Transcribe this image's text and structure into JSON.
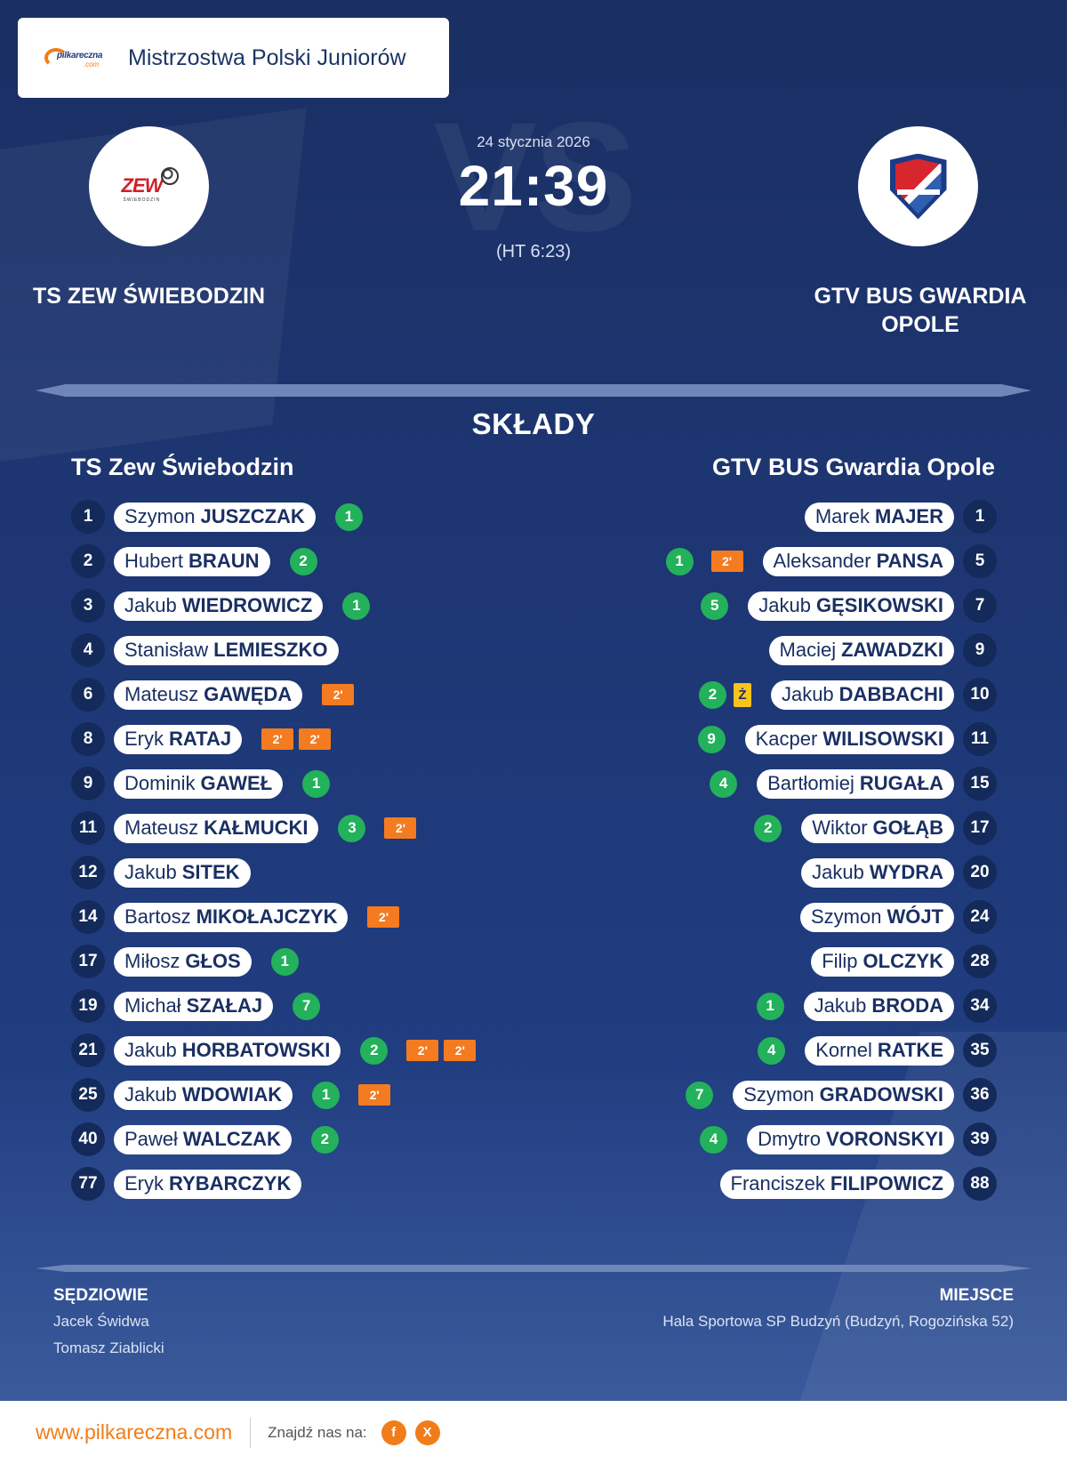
{
  "league": {
    "title": "Mistrzostwa Polski Juniorów",
    "logo_text": "pilkareczna",
    "logo_sub": ".com"
  },
  "watermark": "VS",
  "match": {
    "date": "24 stycznia 2026",
    "score": "21:39",
    "halftime": "(HT 6:23)"
  },
  "home": {
    "name": "TS ZEW ŚWIEBODZIN",
    "roster_title": "TS Zew Świebodzin",
    "logo_text": "ZEW",
    "logo_sub": "ŚWIEBODZIN",
    "players": [
      {
        "num": "1",
        "first": "Szymon",
        "last": "JUSZCZAK",
        "goals": "1",
        "penalties": []
      },
      {
        "num": "2",
        "first": "Hubert",
        "last": "BRAUN",
        "goals": "2",
        "penalties": []
      },
      {
        "num": "3",
        "first": "Jakub",
        "last": "WIEDROWICZ",
        "goals": "1",
        "penalties": []
      },
      {
        "num": "4",
        "first": "Stanisław",
        "last": "LEMIESZKO",
        "goals": "",
        "penalties": []
      },
      {
        "num": "6",
        "first": "Mateusz",
        "last": "GAWĘDA",
        "goals": "",
        "penalties": [
          "2'"
        ]
      },
      {
        "num": "8",
        "first": "Eryk",
        "last": "RATAJ",
        "goals": "",
        "penalties": [
          "2'",
          "2'"
        ]
      },
      {
        "num": "9",
        "first": "Dominik",
        "last": "GAWEŁ",
        "goals": "1",
        "penalties": []
      },
      {
        "num": "11",
        "first": "Mateusz",
        "last": "KAŁMUCKI",
        "goals": "3",
        "penalties": [
          "2'"
        ]
      },
      {
        "num": "12",
        "first": "Jakub",
        "last": "SITEK",
        "goals": "",
        "penalties": []
      },
      {
        "num": "14",
        "first": "Bartosz",
        "last": "MIKOŁAJCZYK",
        "goals": "",
        "penalties": [
          "2'"
        ]
      },
      {
        "num": "17",
        "first": "Miłosz",
        "last": "GŁOS",
        "goals": "1",
        "penalties": []
      },
      {
        "num": "19",
        "first": "Michał",
        "last": "SZAŁAJ",
        "goals": "7",
        "penalties": []
      },
      {
        "num": "21",
        "first": "Jakub",
        "last": "HORBATOWSKI",
        "goals": "2",
        "penalties": [
          "2'",
          "2'"
        ]
      },
      {
        "num": "25",
        "first": "Jakub",
        "last": "WDOWIAK",
        "goals": "1",
        "penalties": [
          "2'"
        ]
      },
      {
        "num": "40",
        "first": "Paweł",
        "last": "WALCZAK",
        "goals": "2",
        "penalties": []
      },
      {
        "num": "77",
        "first": "Eryk",
        "last": "RYBARCZYK",
        "goals": "",
        "penalties": []
      }
    ]
  },
  "away": {
    "name": "GTV BUS GWARDIA OPOLE",
    "roster_title": "GTV BUS Gwardia Opole",
    "players": [
      {
        "num": "1",
        "first": "Marek",
        "last": "MAJER",
        "goals": "",
        "penalties": [],
        "yellow": ""
      },
      {
        "num": "5",
        "first": "Aleksander",
        "last": "PANSA",
        "goals": "1",
        "penalties": [
          "2'"
        ],
        "yellow": ""
      },
      {
        "num": "7",
        "first": "Jakub",
        "last": "GĘSIKOWSKI",
        "goals": "5",
        "penalties": [],
        "yellow": ""
      },
      {
        "num": "9",
        "first": "Maciej",
        "last": "ZAWADZKI",
        "goals": "",
        "penalties": [],
        "yellow": ""
      },
      {
        "num": "10",
        "first": "Jakub",
        "last": "DABBACHI",
        "goals": "2",
        "penalties": [],
        "yellow": "Ż"
      },
      {
        "num": "11",
        "first": "Kacper",
        "last": "WILISOWSKI",
        "goals": "9",
        "penalties": [],
        "yellow": ""
      },
      {
        "num": "15",
        "first": "Bartłomiej",
        "last": "RUGAŁA",
        "goals": "4",
        "penalties": [],
        "yellow": ""
      },
      {
        "num": "17",
        "first": "Wiktor",
        "last": "GOŁĄB",
        "goals": "2",
        "penalties": [],
        "yellow": ""
      },
      {
        "num": "20",
        "first": "Jakub",
        "last": "WYDRA",
        "goals": "",
        "penalties": [],
        "yellow": ""
      },
      {
        "num": "24",
        "first": "Szymon",
        "last": "WÓJT",
        "goals": "",
        "penalties": [],
        "yellow": ""
      },
      {
        "num": "28",
        "first": "Filip",
        "last": "OLCZYK",
        "goals": "",
        "penalties": [],
        "yellow": ""
      },
      {
        "num": "34",
        "first": "Jakub",
        "last": "BRODA",
        "goals": "1",
        "penalties": [],
        "yellow": ""
      },
      {
        "num": "35",
        "first": "Kornel",
        "last": "RATKE",
        "goals": "4",
        "penalties": [],
        "yellow": ""
      },
      {
        "num": "36",
        "first": "Szymon",
        "last": "GRADOWSKI",
        "goals": "7",
        "penalties": [],
        "yellow": ""
      },
      {
        "num": "39",
        "first": "Dmytro",
        "last": "VORONSKYI",
        "goals": "4",
        "penalties": [],
        "yellow": ""
      },
      {
        "num": "88",
        "first": "Franciszek",
        "last": "FILIPOWICZ",
        "goals": "",
        "penalties": [],
        "yellow": ""
      }
    ]
  },
  "section_title": "SKŁADY",
  "officials": {
    "title": "SĘDZIOWIE",
    "names": [
      "Jacek Świdwa",
      "Tomasz Ziablicki"
    ]
  },
  "venue": {
    "title": "MIEJSCE",
    "text": "Hala Sportowa SP Budzyń (Budzyń, Rogozińska 52)"
  },
  "footer": {
    "url": "www.pilkareczna.com",
    "find_us": "Znajdź nas na:",
    "facebook": "f",
    "x": "X"
  },
  "colors": {
    "goal": "#23b15b",
    "penalty": "#f47b20",
    "yellow_card": "#f8c31b",
    "brand_orange": "#f07d1a",
    "navy": "#1a2f63"
  }
}
